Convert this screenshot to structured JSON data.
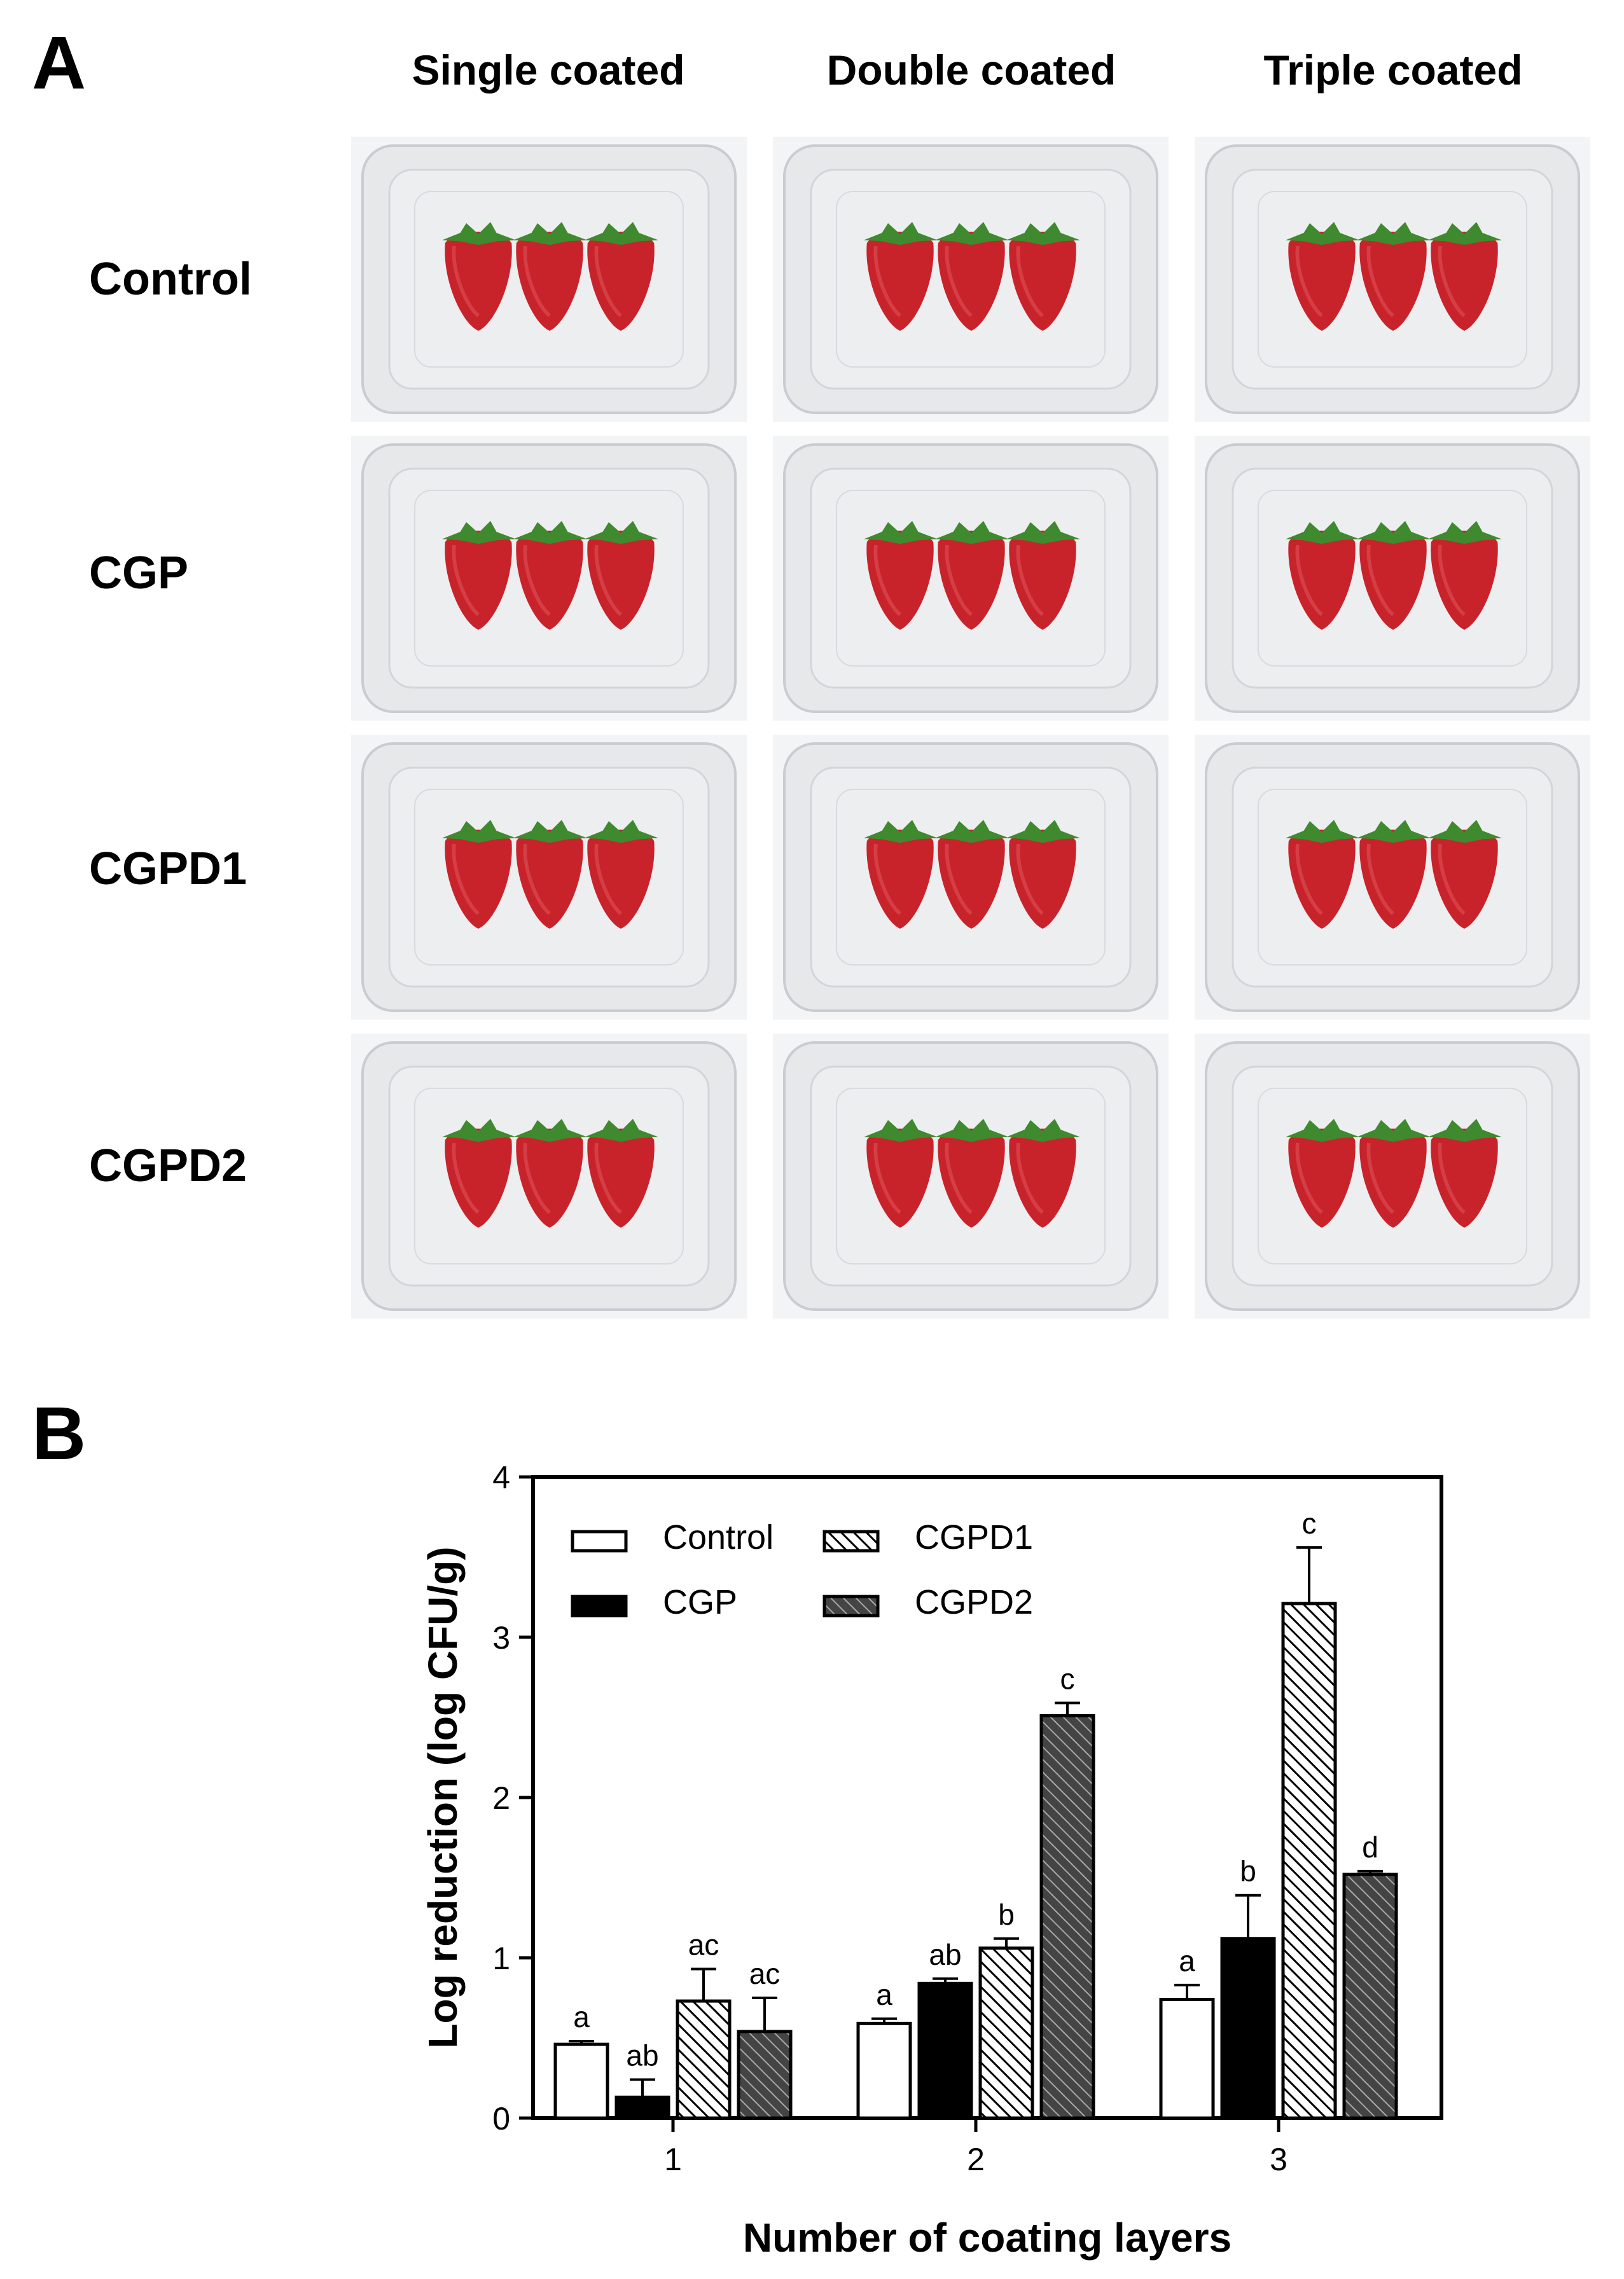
{
  "panel_a": {
    "letter": "A",
    "columns": [
      "Single coated",
      "Double coated",
      "Triple coated"
    ],
    "rows": [
      "Control",
      "CGP",
      "CGPD1",
      "CGPD2"
    ]
  },
  "panel_b": {
    "letter": "B"
  },
  "colors": {
    "strawberry": "#c8232b",
    "leaf": "#3f8a2e",
    "tray": "#e6e8ea",
    "bar_dark": "#000000",
    "hatch_dark": "#333333"
  },
  "chart_data": {
    "type": "bar",
    "categories": [
      "1",
      "2",
      "3"
    ],
    "xlabel": "Number of coating layers",
    "ylabel": "Log reduction (log CFU/g)",
    "ylim": [
      0,
      4
    ],
    "yticks": [
      "0",
      "1",
      "2",
      "3",
      "4"
    ],
    "legend_position": "top-left",
    "series": [
      {
        "name": "Control",
        "fill": "white",
        "values": [
          0.46,
          0.59,
          0.74
        ],
        "errors": [
          0.02,
          0.03,
          0.09
        ],
        "letters": [
          "a",
          "a",
          "a"
        ]
      },
      {
        "name": "CGP",
        "fill": "black",
        "values": [
          0.13,
          0.84,
          1.12
        ],
        "errors": [
          0.11,
          0.03,
          0.27
        ],
        "letters": [
          "ab",
          "ab",
          "b"
        ]
      },
      {
        "name": "CGPD1",
        "fill": "hatch-light",
        "values": [
          0.73,
          1.06,
          3.21
        ],
        "errors": [
          0.2,
          0.06,
          0.35
        ],
        "letters": [
          "ac",
          "b",
          "c"
        ]
      },
      {
        "name": "CGPD2",
        "fill": "hatch-dark",
        "values": [
          0.54,
          2.51,
          1.52
        ],
        "errors": [
          0.21,
          0.08,
          0.02
        ],
        "letters": [
          "ac",
          "c",
          "d"
        ]
      }
    ]
  }
}
